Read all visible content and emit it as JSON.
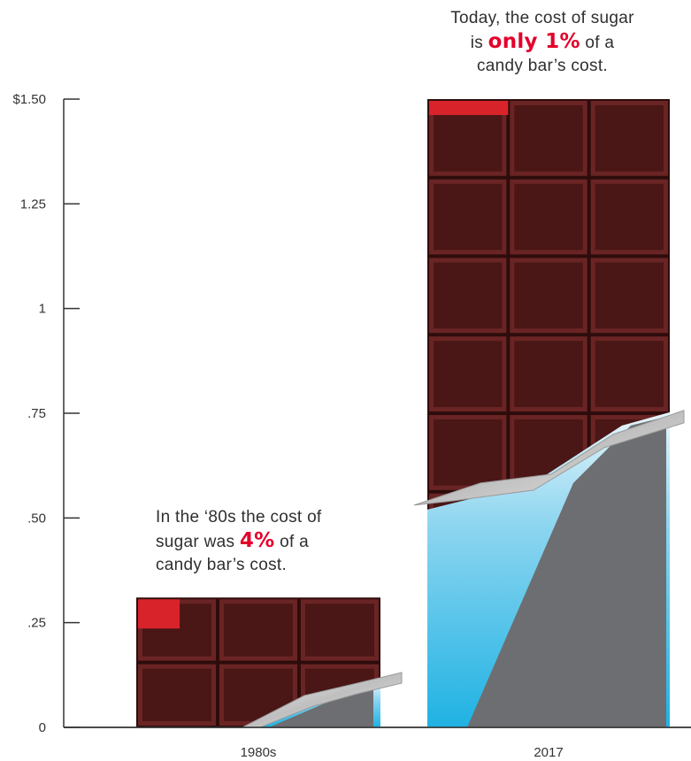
{
  "chart_data": {
    "type": "bar",
    "categories": [
      "1980s",
      "2017"
    ],
    "values": [
      0.31,
      1.5
    ],
    "ylim": [
      0,
      1.5
    ],
    "yticks": [
      {
        "value": 0,
        "label": "0"
      },
      {
        "value": 0.25,
        "label": ".25"
      },
      {
        "value": 0.5,
        "label": ".50"
      },
      {
        "value": 0.75,
        "label": ".75"
      },
      {
        "value": 1,
        "label": "1"
      },
      {
        "value": 1.25,
        "label": "1.25"
      },
      {
        "value": 1.5,
        "label": "$1.50"
      }
    ],
    "sugar_share_percent": [
      4,
      1
    ],
    "annotations": [
      {
        "category": "2017",
        "before": "Today, the cost of sugar is ",
        "highlight": "only 1%",
        "after": " of a candy bar’s cost."
      },
      {
        "category": "1980s",
        "before": "In the ‘80s the cost of sugar was ",
        "highlight": "4%",
        "after": " of a candy bar’s cost."
      }
    ],
    "grid": false
  },
  "colors": {
    "chocolate": "#4a1616",
    "chocolate_dark": "#2e0c0c",
    "chocolate_light": "#6a2424",
    "sugar_red": "#d9232b",
    "highlight": "#e3002b",
    "wrapper_blue": "#6cc8ea",
    "wrapper_gray": "#6d6e71",
    "axis": "#333333"
  }
}
